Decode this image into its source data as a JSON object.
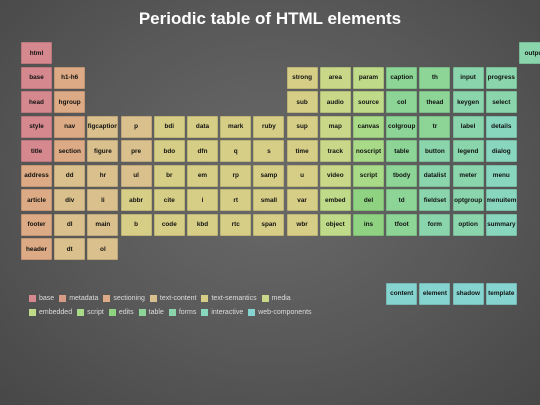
{
  "title": "Periodic table of HTML elements",
  "colors": {
    "base": "#d5888e",
    "metadata": "#d69c85",
    "sectioning": "#dcaa84",
    "text-content": "#d9c08c",
    "text-semantics": "#d6cd86",
    "media": "#c9d789",
    "embedded": "#bfdb89",
    "script": "#a8da87",
    "edits": "#8fd382",
    "table": "#8cd597",
    "forms": "#8ad5ac",
    "interactive": "#89d6be",
    "web-components": "#86d4cf"
  },
  "elements": [
    {
      "label": "html",
      "cat": "base",
      "row": 0,
      "col": 0
    },
    {
      "label": "output",
      "cat": "forms",
      "row": 0,
      "col": 15
    },
    {
      "label": "base",
      "cat": "base",
      "row": 1,
      "col": 0
    },
    {
      "label": "h1-h6",
      "cat": "sectioning",
      "row": 1,
      "col": 1
    },
    {
      "label": "strong",
      "cat": "text-semantics",
      "row": 1,
      "col": 8
    },
    {
      "label": "area",
      "cat": "media",
      "row": 1,
      "col": 9
    },
    {
      "label": "param",
      "cat": "embedded",
      "row": 1,
      "col": 10
    },
    {
      "label": "caption",
      "cat": "table",
      "row": 1,
      "col": 11
    },
    {
      "label": "th",
      "cat": "table",
      "row": 1,
      "col": 12
    },
    {
      "label": "input",
      "cat": "forms",
      "row": 1,
      "col": 13
    },
    {
      "label": "progress",
      "cat": "forms",
      "row": 1,
      "col": 14
    },
    {
      "label": "head",
      "cat": "base",
      "row": 2,
      "col": 0
    },
    {
      "label": "hgroup",
      "cat": "sectioning",
      "row": 2,
      "col": 1
    },
    {
      "label": "sub",
      "cat": "text-semantics",
      "row": 2,
      "col": 8
    },
    {
      "label": "audio",
      "cat": "media",
      "row": 2,
      "col": 9
    },
    {
      "label": "source",
      "cat": "embedded",
      "row": 2,
      "col": 10
    },
    {
      "label": "col",
      "cat": "table",
      "row": 2,
      "col": 11
    },
    {
      "label": "thead",
      "cat": "table",
      "row": 2,
      "col": 12
    },
    {
      "label": "keygen",
      "cat": "forms",
      "row": 2,
      "col": 13
    },
    {
      "label": "select",
      "cat": "forms",
      "row": 2,
      "col": 14
    },
    {
      "label": "style",
      "cat": "base",
      "row": 3,
      "col": 0
    },
    {
      "label": "nav",
      "cat": "sectioning",
      "row": 3,
      "col": 1
    },
    {
      "label": "figcaption",
      "cat": "text-content",
      "row": 3,
      "col": 2
    },
    {
      "label": "p",
      "cat": "text-content",
      "row": 3,
      "col": 3
    },
    {
      "label": "bdi",
      "cat": "text-semantics",
      "row": 3,
      "col": 4
    },
    {
      "label": "data",
      "cat": "text-semantics",
      "row": 3,
      "col": 5
    },
    {
      "label": "mark",
      "cat": "text-semantics",
      "row": 3,
      "col": 6
    },
    {
      "label": "ruby",
      "cat": "text-semantics",
      "row": 3,
      "col": 7
    },
    {
      "label": "sup",
      "cat": "text-semantics",
      "row": 3,
      "col": 8
    },
    {
      "label": "map",
      "cat": "media",
      "row": 3,
      "col": 9
    },
    {
      "label": "canvas",
      "cat": "script",
      "row": 3,
      "col": 10
    },
    {
      "label": "colgroup",
      "cat": "table",
      "row": 3,
      "col": 11
    },
    {
      "label": "tr",
      "cat": "table",
      "row": 3,
      "col": 12
    },
    {
      "label": "label",
      "cat": "forms",
      "row": 3,
      "col": 13
    },
    {
      "label": "details",
      "cat": "interactive",
      "row": 3,
      "col": 14
    },
    {
      "label": "title",
      "cat": "base",
      "row": 4,
      "col": 0
    },
    {
      "label": "section",
      "cat": "sectioning",
      "row": 4,
      "col": 1
    },
    {
      "label": "figure",
      "cat": "text-content",
      "row": 4,
      "col": 2
    },
    {
      "label": "pre",
      "cat": "text-content",
      "row": 4,
      "col": 3
    },
    {
      "label": "bdo",
      "cat": "text-semantics",
      "row": 4,
      "col": 4
    },
    {
      "label": "dfn",
      "cat": "text-semantics",
      "row": 4,
      "col": 5
    },
    {
      "label": "q",
      "cat": "text-semantics",
      "row": 4,
      "col": 6
    },
    {
      "label": "s",
      "cat": "text-semantics",
      "row": 4,
      "col": 7
    },
    {
      "label": "time",
      "cat": "text-semantics",
      "row": 4,
      "col": 8
    },
    {
      "label": "track",
      "cat": "media",
      "row": 4,
      "col": 9
    },
    {
      "label": "noscript",
      "cat": "script",
      "row": 4,
      "col": 10
    },
    {
      "label": "table",
      "cat": "table",
      "row": 4,
      "col": 11
    },
    {
      "label": "button",
      "cat": "forms",
      "row": 4,
      "col": 12
    },
    {
      "label": "legend",
      "cat": "forms",
      "row": 4,
      "col": 13
    },
    {
      "label": "dialog",
      "cat": "interactive",
      "row": 4,
      "col": 14
    },
    {
      "label": "address",
      "cat": "sectioning",
      "row": 5,
      "col": 0
    },
    {
      "label": "dd",
      "cat": "text-content",
      "row": 5,
      "col": 1
    },
    {
      "label": "hr",
      "cat": "text-content",
      "row": 5,
      "col": 2
    },
    {
      "label": "ul",
      "cat": "text-content",
      "row": 5,
      "col": 3
    },
    {
      "label": "br",
      "cat": "text-semantics",
      "row": 5,
      "col": 4
    },
    {
      "label": "em",
      "cat": "text-semantics",
      "row": 5,
      "col": 5
    },
    {
      "label": "rp",
      "cat": "text-semantics",
      "row": 5,
      "col": 6
    },
    {
      "label": "samp",
      "cat": "text-semantics",
      "row": 5,
      "col": 7
    },
    {
      "label": "u",
      "cat": "text-semantics",
      "row": 5,
      "col": 8
    },
    {
      "label": "video",
      "cat": "media",
      "row": 5,
      "col": 9
    },
    {
      "label": "script",
      "cat": "script",
      "row": 5,
      "col": 10
    },
    {
      "label": "tbody",
      "cat": "table",
      "row": 5,
      "col": 11
    },
    {
      "label": "datalist",
      "cat": "forms",
      "row": 5,
      "col": 12
    },
    {
      "label": "meter",
      "cat": "forms",
      "row": 5,
      "col": 13
    },
    {
      "label": "menu",
      "cat": "interactive",
      "row": 5,
      "col": 14
    },
    {
      "label": "article",
      "cat": "sectioning",
      "row": 6,
      "col": 0
    },
    {
      "label": "div",
      "cat": "text-content",
      "row": 6,
      "col": 1
    },
    {
      "label": "li",
      "cat": "text-content",
      "row": 6,
      "col": 2
    },
    {
      "label": "abbr",
      "cat": "text-semantics",
      "row": 6,
      "col": 3
    },
    {
      "label": "cite",
      "cat": "text-semantics",
      "row": 6,
      "col": 4
    },
    {
      "label": "i",
      "cat": "text-semantics",
      "row": 6,
      "col": 5
    },
    {
      "label": "rt",
      "cat": "text-semantics",
      "row": 6,
      "col": 6
    },
    {
      "label": "small",
      "cat": "text-semantics",
      "row": 6,
      "col": 7
    },
    {
      "label": "var",
      "cat": "text-semantics",
      "row": 6,
      "col": 8
    },
    {
      "label": "embed",
      "cat": "embedded",
      "row": 6,
      "col": 9
    },
    {
      "label": "del",
      "cat": "edits",
      "row": 6,
      "col": 10
    },
    {
      "label": "td",
      "cat": "table",
      "row": 6,
      "col": 11
    },
    {
      "label": "fieldset",
      "cat": "forms",
      "row": 6,
      "col": 12
    },
    {
      "label": "optgroup",
      "cat": "forms",
      "row": 6,
      "col": 13
    },
    {
      "label": "menuitem",
      "cat": "interactive",
      "row": 6,
      "col": 14
    },
    {
      "label": "footer",
      "cat": "sectioning",
      "row": 7,
      "col": 0
    },
    {
      "label": "dl",
      "cat": "text-content",
      "row": 7,
      "col": 1
    },
    {
      "label": "main",
      "cat": "text-content",
      "row": 7,
      "col": 2
    },
    {
      "label": "b",
      "cat": "text-semantics",
      "row": 7,
      "col": 3
    },
    {
      "label": "code",
      "cat": "text-semantics",
      "row": 7,
      "col": 4
    },
    {
      "label": "kbd",
      "cat": "text-semantics",
      "row": 7,
      "col": 5
    },
    {
      "label": "rtc",
      "cat": "text-semantics",
      "row": 7,
      "col": 6
    },
    {
      "label": "span",
      "cat": "text-semantics",
      "row": 7,
      "col": 7
    },
    {
      "label": "wbr",
      "cat": "text-semantics",
      "row": 7,
      "col": 8
    },
    {
      "label": "object",
      "cat": "embedded",
      "row": 7,
      "col": 9
    },
    {
      "label": "ins",
      "cat": "edits",
      "row": 7,
      "col": 10
    },
    {
      "label": "tfoot",
      "cat": "table",
      "row": 7,
      "col": 11
    },
    {
      "label": "form",
      "cat": "forms",
      "row": 7,
      "col": 12
    },
    {
      "label": "option",
      "cat": "forms",
      "row": 7,
      "col": 13
    },
    {
      "label": "summary",
      "cat": "interactive",
      "row": 7,
      "col": 14
    },
    {
      "label": "header",
      "cat": "sectioning",
      "row": 8,
      "col": 0
    },
    {
      "label": "dt",
      "cat": "text-content",
      "row": 8,
      "col": 1
    },
    {
      "label": "ol",
      "cat": "text-content",
      "row": 8,
      "col": 2
    },
    {
      "label": "content",
      "cat": "web-components",
      "row": 9,
      "col": 11
    },
    {
      "label": "element",
      "cat": "web-components",
      "row": 9,
      "col": 12
    },
    {
      "label": "shadow",
      "cat": "web-components",
      "row": 9,
      "col": 13
    },
    {
      "label": "template",
      "cat": "web-components",
      "row": 9,
      "col": 14
    }
  ],
  "legend": [
    [
      "base",
      "metadata",
      "sectioning",
      "text-content",
      "text-semantics",
      "media"
    ],
    [
      "embedded",
      "script",
      "edits",
      "table",
      "forms",
      "interactive",
      "web-components"
    ]
  ]
}
